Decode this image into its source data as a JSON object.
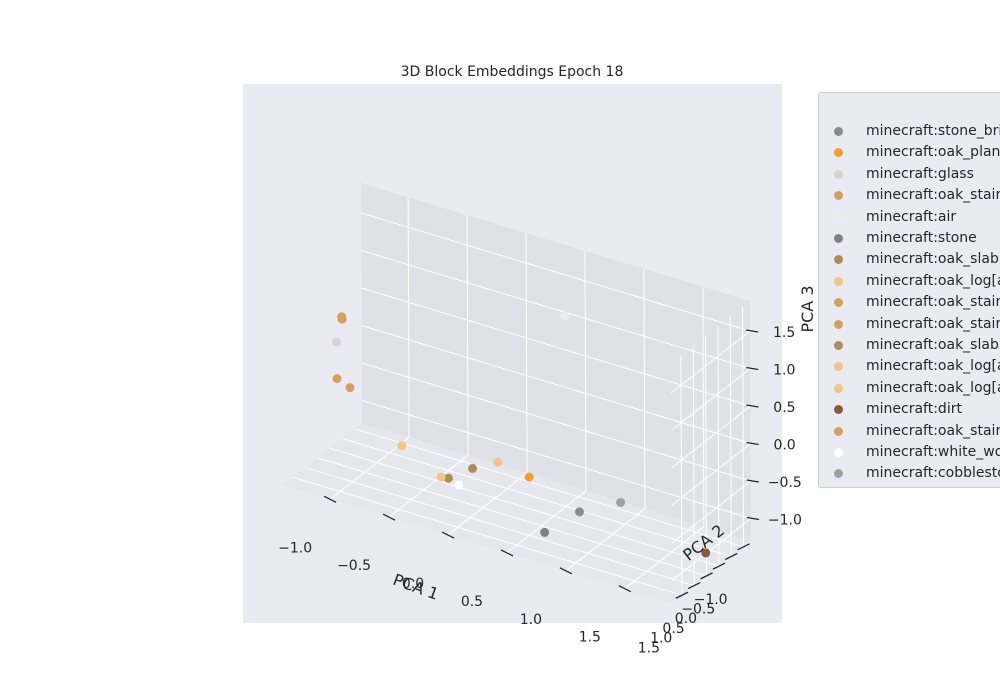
{
  "chart_data": {
    "type": "scatter",
    "title": "3D Block Embeddings Epoch 18",
    "xlabel": "PCA 1",
    "ylabel": "PCA 2",
    "zlabel": "PCA 3",
    "xticks": [
      "−1.0",
      "−0.5",
      "0.0",
      "0.5",
      "1.0",
      "1.5"
    ],
    "yticks": [
      "−1.0",
      "−0.5",
      "0.0",
      "0.5",
      "1.0",
      "1.5"
    ],
    "zticks": [
      "−1.0",
      "−0.5",
      "0.0",
      "0.5",
      "1.0",
      "1.5"
    ],
    "xlim": [
      -1.4,
      1.9
    ],
    "ylim": [
      -1.3,
      1.9
    ],
    "zlim": [
      -1.3,
      1.9
    ],
    "legend_position": "outside-right",
    "grid": true,
    "series": [
      {
        "name": "minecraft:stone_bric",
        "color": "#8a8a8a",
        "points": [
          [
            0.77,
            0.25,
            -1.05
          ]
        ]
      },
      {
        "name": "minecraft:oak_plank",
        "color": "#f0a030",
        "points": [
          [
            0.25,
            -0.2,
            -0.95
          ]
        ]
      },
      {
        "name": "minecraft:glass",
        "color": "#d8d2d0",
        "points": [
          [
            -1.16,
            0.85,
            0.45
          ]
        ]
      },
      {
        "name": "minecraft:oak_stairs",
        "color": "#d4a060",
        "points": [
          [
            -1.4,
            -0.3,
            -0.45
          ]
        ]
      },
      {
        "name": "minecraft:air",
        "color": "#ececec",
        "points": [
          [
            0.82,
            1.05,
            1.79
          ]
        ]
      },
      {
        "name": "minecraft:stone",
        "color": "#808080",
        "points": [
          [
            0.6,
            0.85,
            -1.25
          ]
        ]
      },
      {
        "name": "minecraft:oak_slab[t",
        "color": "#b08a5a",
        "points": [
          [
            -0.3,
            0.45,
            -1.06
          ]
        ]
      },
      {
        "name": "minecraft:oak_log[a",
        "color": "#f0c688",
        "points": [
          [
            -0.33,
            0.6,
            -1.02
          ]
        ]
      },
      {
        "name": "minecraft:oak_stairs",
        "color": "#d4a060",
        "points": [
          [
            -1.17,
            0.58,
            0.68
          ]
        ]
      },
      {
        "name": "minecraft:oak_stairs",
        "color": "#d4a060",
        "points": [
          [
            -1.28,
            -0.25,
            -0.5
          ]
        ]
      },
      {
        "name": "minecraft:oak_slab[t",
        "color": "#b08a5a",
        "points": [
          [
            -0.17,
            0.09,
            -0.96
          ]
        ]
      },
      {
        "name": "minecraft:oak_log[a",
        "color": "#f0c688",
        "points": [
          [
            -0.75,
            0.18,
            -0.91
          ]
        ]
      },
      {
        "name": "minecraft:oak_log[a",
        "color": "#f0c688",
        "points": [
          [
            0.0,
            -0.12,
            -0.85
          ]
        ]
      },
      {
        "name": "minecraft:dirt",
        "color": "#8b5a3c",
        "points": [
          [
            1.81,
            0.1,
            -1.14
          ]
        ]
      },
      {
        "name": "minecraft:oak_stairs",
        "color": "#d4a060",
        "points": [
          [
            -1.18,
            0.55,
            0.7
          ]
        ]
      },
      {
        "name": "minecraft:white_woo",
        "color": "#ffffff",
        "points": [
          [
            -0.1,
            0.98,
            -0.92
          ]
        ]
      },
      {
        "name": "minecraft:cobblestor",
        "color": "#a0a0a0",
        "points": [
          [
            0.96,
            -0.51,
            -1.03
          ]
        ]
      }
    ]
  }
}
